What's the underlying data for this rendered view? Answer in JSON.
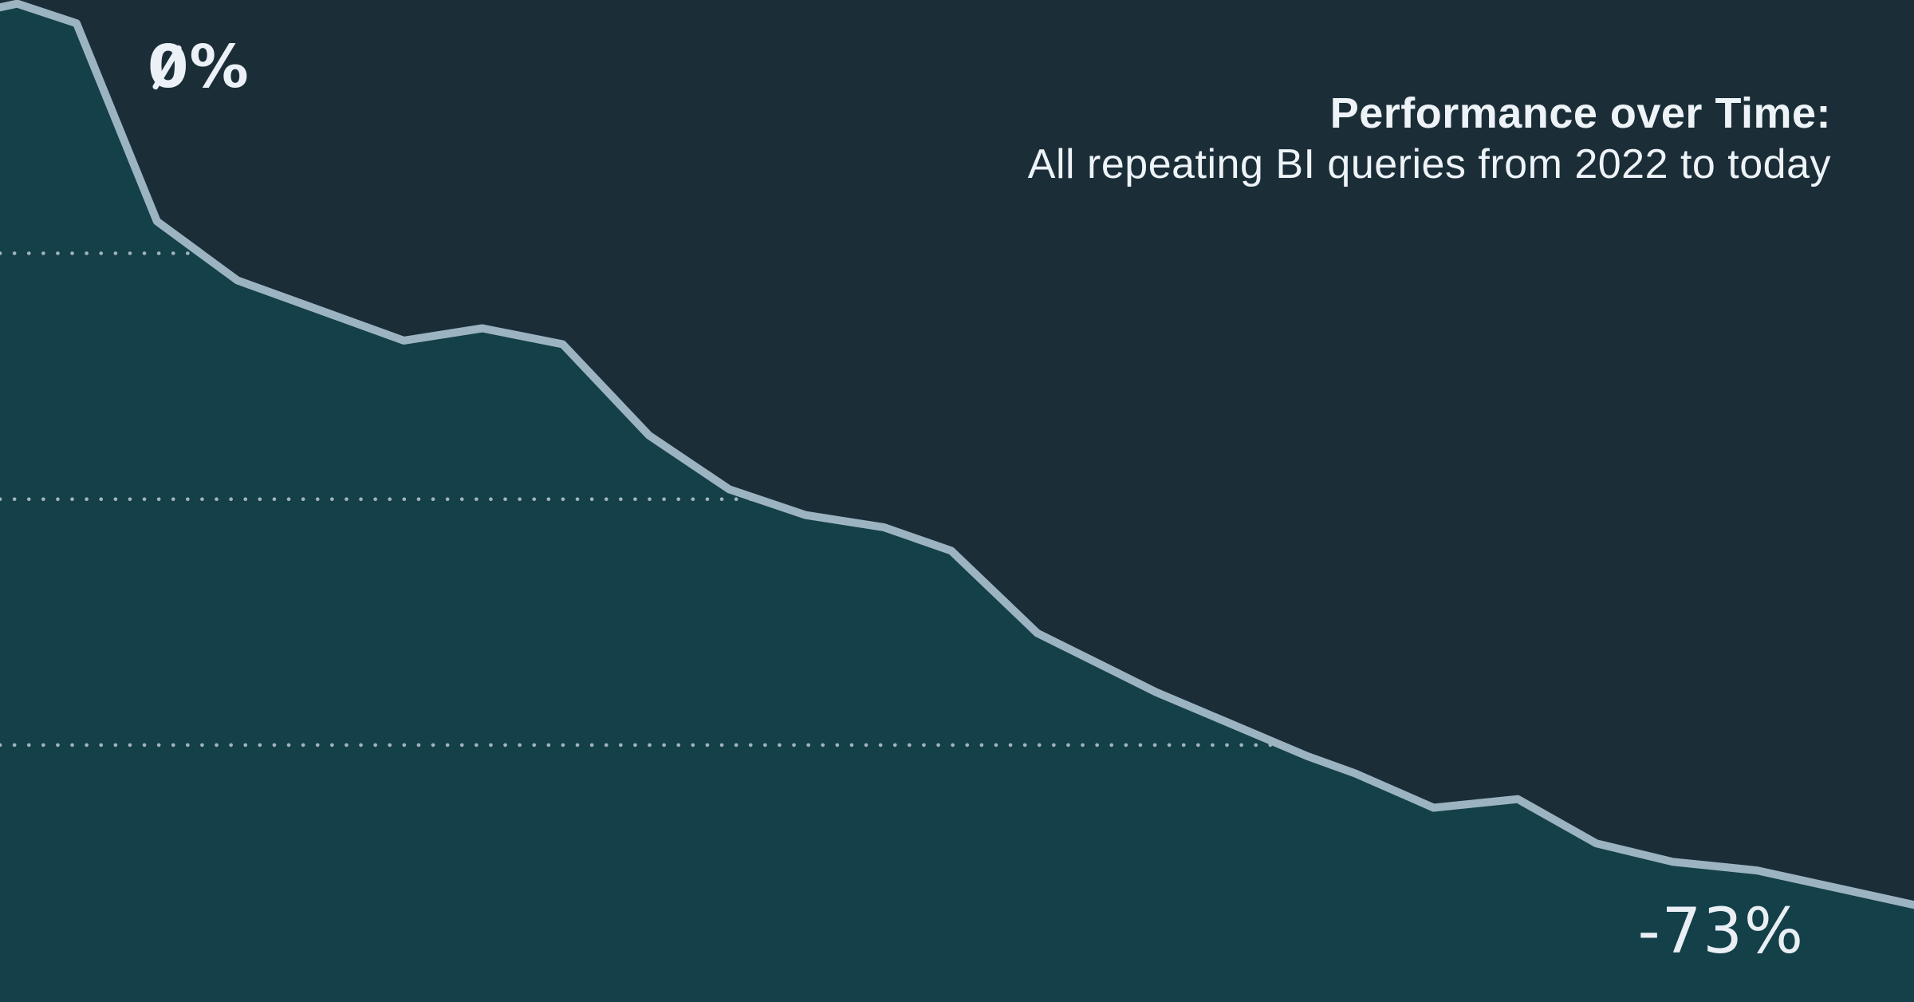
{
  "header": {
    "title": "Performance over Time:",
    "subtitle": "All repeating BI queries from 2022 to today"
  },
  "labels": {
    "start_value": "0%",
    "end_value": "-73%"
  },
  "colors": {
    "background": "#1b2e38",
    "area_fill": "#144049",
    "line": "#9cb4c2",
    "gridline_dots": "#bac8d2",
    "text": "#ebf1f6"
  },
  "chart_data": {
    "type": "area",
    "title": "Performance over Time:",
    "subtitle": "All repeating BI queries from 2022 to today",
    "xlabel": "",
    "ylabel": "",
    "unit": "%",
    "x_axis": {
      "start": "2022",
      "end": "today",
      "tick_labels_visible": false
    },
    "start_value_pct": 0,
    "end_value_pct": -73,
    "ylim": [
      -80.9,
      0.6
    ],
    "grid": "dotted-horizontal",
    "gridline_values_pct": [
      -20,
      -40,
      -60
    ],
    "gridlines_clipped_to_area": true,
    "legend_position": "none",
    "points": [
      {
        "x_frac": 0.0,
        "value_pct": 0.0
      },
      {
        "x_frac": 0.009,
        "value_pct": 0.3
      },
      {
        "x_frac": 0.04,
        "value_pct": -1.3
      },
      {
        "x_frac": 0.082,
        "value_pct": -17.4
      },
      {
        "x_frac": 0.124,
        "value_pct": -22.2
      },
      {
        "x_frac": 0.211,
        "value_pct": -27.1
      },
      {
        "x_frac": 0.252,
        "value_pct": -26.1
      },
      {
        "x_frac": 0.294,
        "value_pct": -27.4
      },
      {
        "x_frac": 0.339,
        "value_pct": -34.8
      },
      {
        "x_frac": 0.381,
        "value_pct": -39.2
      },
      {
        "x_frac": 0.421,
        "value_pct": -41.3
      },
      {
        "x_frac": 0.462,
        "value_pct": -42.3
      },
      {
        "x_frac": 0.497,
        "value_pct": -44.2
      },
      {
        "x_frac": 0.542,
        "value_pct": -50.9
      },
      {
        "x_frac": 0.604,
        "value_pct": -55.7
      },
      {
        "x_frac": 0.683,
        "value_pct": -60.9
      },
      {
        "x_frac": 0.708,
        "value_pct": -62.3
      },
      {
        "x_frac": 0.749,
        "value_pct": -65.1
      },
      {
        "x_frac": 0.793,
        "value_pct": -64.4
      },
      {
        "x_frac": 0.834,
        "value_pct": -68.0
      },
      {
        "x_frac": 0.874,
        "value_pct": -69.5
      },
      {
        "x_frac": 0.918,
        "value_pct": -70.2
      },
      {
        "x_frac": 1.0,
        "value_pct": -73.0
      }
    ]
  }
}
